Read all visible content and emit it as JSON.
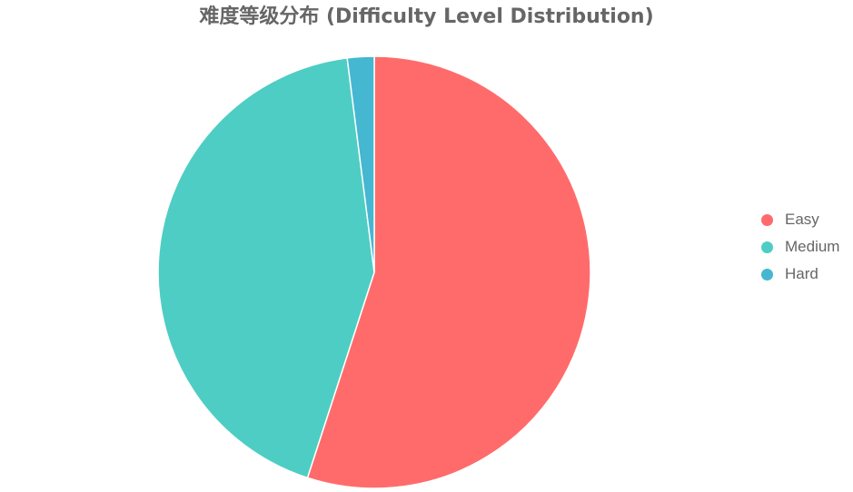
{
  "chart_data": {
    "type": "pie",
    "title": "难度等级分布 (Difficulty Level Distribution)",
    "categories": [
      "Easy",
      "Medium",
      "Hard"
    ],
    "values": [
      55,
      43,
      2
    ],
    "colors": [
      "#FF6B6B",
      "#4ECDC4",
      "#45B7D1"
    ],
    "start_angle_deg": -90,
    "direction": "clockwise",
    "legend_position": "right",
    "slice_border_color": "#ffffff"
  }
}
